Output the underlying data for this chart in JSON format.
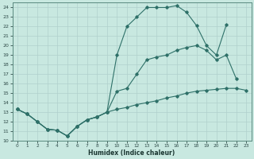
{
  "xlabel": "Humidex (Indice chaleur)",
  "bg_color": "#c8e8e0",
  "line_color": "#2e7068",
  "grid_color": "#b0d0cc",
  "xlim": [
    -0.5,
    23.5
  ],
  "ylim": [
    10,
    24.5
  ],
  "yticks": [
    10,
    11,
    12,
    13,
    14,
    15,
    16,
    17,
    18,
    19,
    20,
    21,
    22,
    23,
    24
  ],
  "xticks": [
    0,
    1,
    2,
    3,
    4,
    5,
    6,
    7,
    8,
    9,
    10,
    11,
    12,
    13,
    14,
    15,
    16,
    17,
    18,
    19,
    20,
    21,
    22,
    23
  ],
  "line1_x": [
    0,
    1,
    2,
    3,
    4,
    5,
    6,
    7,
    8,
    9,
    10,
    11,
    12,
    13,
    14,
    15,
    16,
    17,
    18,
    19,
    20,
    21
  ],
  "line1_y": [
    13.3,
    12.8,
    12.0,
    11.2,
    11.1,
    10.5,
    11.5,
    12.2,
    12.5,
    13.0,
    19.0,
    22.0,
    23.0,
    24.0,
    24.0,
    24.0,
    24.2,
    23.5,
    22.1,
    20.0,
    19.0,
    22.2
  ],
  "line2_x": [
    0,
    1,
    2,
    3,
    4,
    5,
    6,
    7,
    8,
    9,
    10,
    11,
    12,
    13,
    14,
    15,
    16,
    17,
    18,
    19,
    20,
    21,
    22,
    23
  ],
  "line2_y": [
    13.3,
    12.8,
    12.0,
    11.2,
    11.1,
    10.5,
    11.5,
    12.2,
    12.5,
    13.0,
    15.2,
    15.5,
    17.0,
    18.5,
    18.8,
    19.0,
    19.5,
    19.8,
    20.0,
    19.5,
    18.5,
    19.0,
    16.5,
    null
  ],
  "line3_x": [
    0,
    1,
    2,
    3,
    4,
    5,
    6,
    7,
    8,
    9,
    10,
    11,
    12,
    13,
    14,
    15,
    16,
    17,
    18,
    19,
    20,
    21,
    22,
    23
  ],
  "line3_y": [
    13.3,
    12.8,
    12.0,
    11.2,
    11.1,
    10.5,
    11.5,
    12.2,
    12.5,
    13.0,
    13.3,
    13.5,
    13.8,
    14.0,
    14.2,
    14.5,
    14.7,
    15.0,
    15.2,
    15.3,
    15.4,
    15.5,
    15.5,
    15.3
  ]
}
